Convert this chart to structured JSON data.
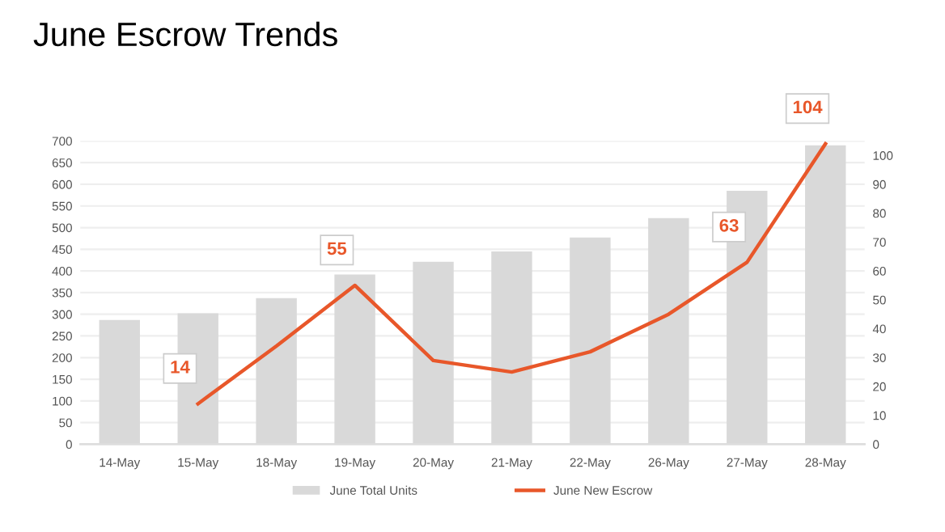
{
  "chart_data": {
    "type": "bar",
    "title": "June Escrow Trends",
    "categories": [
      "14-May",
      "15-May",
      "18-May",
      "19-May",
      "20-May",
      "21-May",
      "22-May",
      "26-May",
      "27-May",
      "28-May"
    ],
    "series": [
      {
        "name": "June Total Units",
        "color": "#d9d9d9",
        "values": [
          287,
          302,
          337,
          392,
          421,
          445,
          477,
          522,
          585,
          690
        ]
      },
      {
        "name": "June New Escrow",
        "color": "#e8572a",
        "type": "line",
        "axis": "y2",
        "values": [
          null,
          14,
          34,
          55,
          29,
          25,
          32,
          45,
          63,
          104
        ],
        "value_labels": [
          null,
          "14",
          null,
          "55",
          null,
          null,
          null,
          null,
          "63",
          "104"
        ]
      }
    ],
    "ylim": [
      0,
      700
    ],
    "yticks": [
      0,
      50,
      100,
      150,
      200,
      250,
      300,
      350,
      400,
      450,
      500,
      550,
      600,
      650,
      700
    ],
    "y2lim": [
      0,
      105
    ],
    "y2ticks": [
      0,
      10,
      20,
      30,
      40,
      50,
      60,
      70,
      80,
      90,
      100
    ],
    "grid": "y",
    "legend": "bottom",
    "marker": "none",
    "line_style": "solid"
  }
}
